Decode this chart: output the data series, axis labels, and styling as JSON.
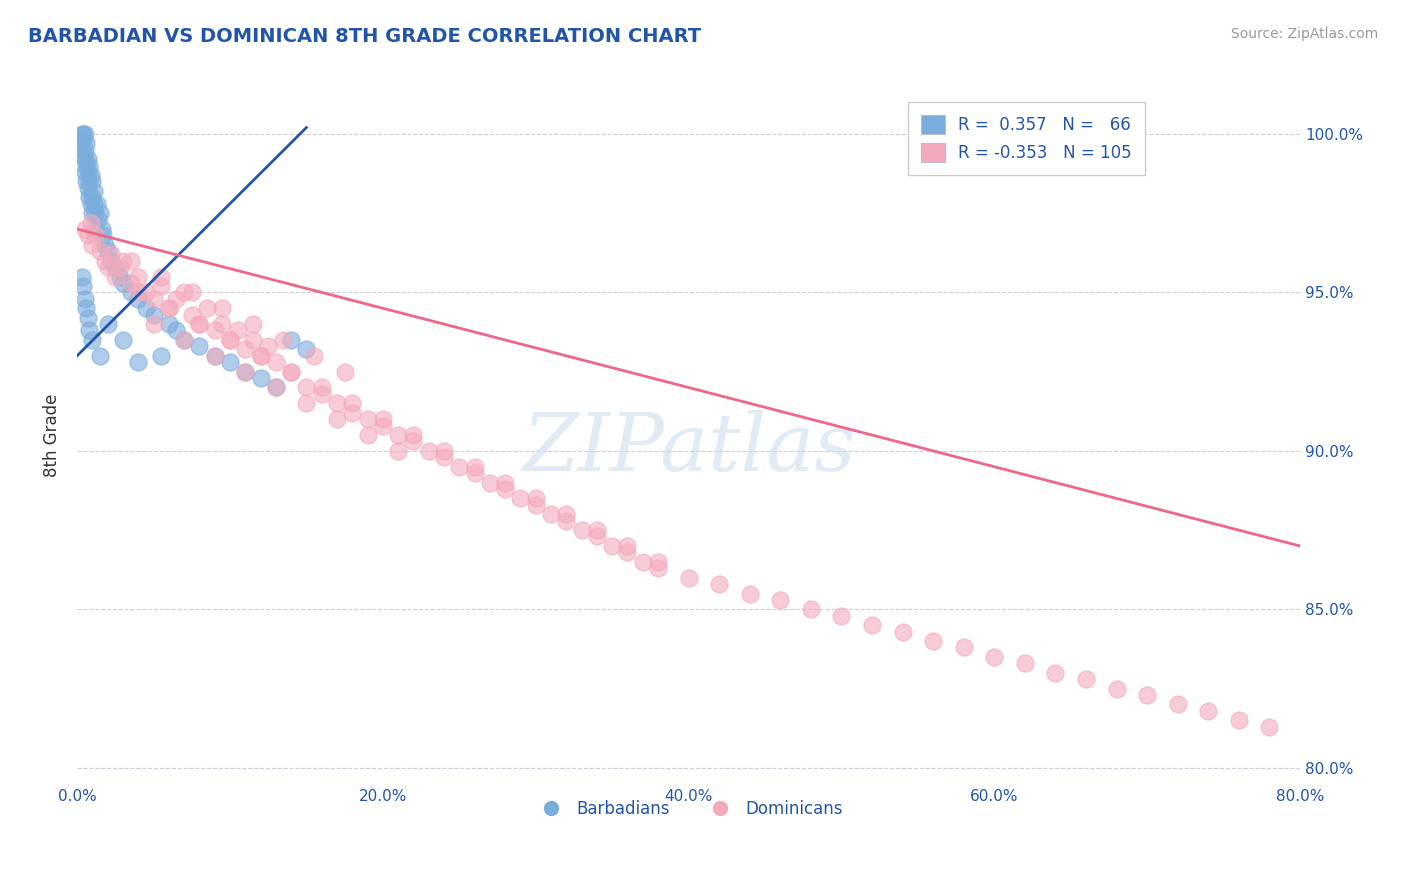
{
  "title": "BARBADIAN VS DOMINICAN 8TH GRADE CORRELATION CHART",
  "source_text": "Source: ZipAtlas.com",
  "ylabel": "8th Grade",
  "xlim": [
    0.0,
    80.0
  ],
  "ylim": [
    79.5,
    101.5
  ],
  "blue_color": "#7AADDC",
  "pink_color": "#F4AABB",
  "blue_line_color": "#2255AA",
  "pink_line_color": "#EE6688",
  "title_color": "#2255AA",
  "source_color": "#999999",
  "axis_label_color": "#2255AA",
  "tick_color": "#2255AA",
  "background_color": "#FFFFFF",
  "grid_color": "#CCCCDD",
  "watermark_text": "ZIPatlas",
  "blue_scatter_x": [
    0.2,
    0.3,
    0.3,
    0.4,
    0.4,
    0.4,
    0.5,
    0.5,
    0.5,
    0.5,
    0.6,
    0.6,
    0.6,
    0.7,
    0.7,
    0.7,
    0.8,
    0.8,
    0.8,
    0.9,
    0.9,
    1.0,
    1.0,
    1.0,
    1.1,
    1.1,
    1.2,
    1.2,
    1.3,
    1.4,
    1.5,
    1.6,
    1.7,
    1.8,
    2.0,
    2.2,
    2.5,
    2.8,
    3.0,
    3.5,
    4.0,
    4.5,
    5.0,
    6.0,
    6.5,
    7.0,
    8.0,
    9.0,
    10.0,
    11.0,
    12.0,
    13.0,
    14.0,
    15.0,
    0.3,
    0.4,
    0.5,
    0.6,
    0.7,
    0.8,
    1.0,
    1.5,
    2.0,
    3.0,
    4.0,
    5.5
  ],
  "blue_scatter_y": [
    99.8,
    100.0,
    99.5,
    100.0,
    99.8,
    99.3,
    100.0,
    99.5,
    99.2,
    98.8,
    99.7,
    99.0,
    98.5,
    99.2,
    98.8,
    98.3,
    99.0,
    98.5,
    98.0,
    98.7,
    97.8,
    98.5,
    98.0,
    97.5,
    98.2,
    97.8,
    97.5,
    97.0,
    97.8,
    97.3,
    97.5,
    97.0,
    96.8,
    96.5,
    96.3,
    96.0,
    95.8,
    95.5,
    95.3,
    95.0,
    94.8,
    94.5,
    94.3,
    94.0,
    93.8,
    93.5,
    93.3,
    93.0,
    92.8,
    92.5,
    92.3,
    92.0,
    93.5,
    93.2,
    95.5,
    95.2,
    94.8,
    94.5,
    94.2,
    93.8,
    93.5,
    93.0,
    94.0,
    93.5,
    92.8,
    93.0
  ],
  "pink_scatter_x": [
    0.5,
    0.7,
    0.9,
    1.0,
    1.2,
    1.5,
    1.8,
    2.0,
    2.2,
    2.5,
    2.8,
    3.0,
    3.5,
    4.0,
    4.5,
    5.0,
    5.5,
    6.0,
    6.5,
    7.0,
    7.5,
    8.0,
    8.5,
    9.0,
    9.5,
    10.0,
    10.5,
    11.0,
    11.5,
    12.0,
    12.5,
    13.0,
    14.0,
    15.0,
    16.0,
    17.0,
    18.0,
    19.0,
    20.0,
    21.0,
    22.0,
    23.0,
    24.0,
    25.0,
    26.0,
    27.0,
    28.0,
    29.0,
    30.0,
    31.0,
    32.0,
    33.0,
    34.0,
    35.0,
    36.0,
    37.0,
    38.0,
    40.0,
    42.0,
    44.0,
    46.0,
    48.0,
    50.0,
    52.0,
    54.0,
    56.0,
    58.0,
    60.0,
    62.0,
    64.0,
    66.0,
    68.0,
    70.0,
    72.0,
    74.0,
    76.0,
    78.0,
    5.0,
    7.0,
    9.0,
    11.0,
    13.0,
    15.0,
    17.0,
    19.0,
    21.0,
    4.0,
    6.0,
    8.0,
    10.0,
    12.0,
    14.0,
    16.0,
    18.0,
    20.0,
    22.0,
    24.0,
    26.0,
    28.0,
    30.0,
    32.0,
    34.0,
    36.0,
    38.0,
    3.5,
    5.5,
    7.5,
    9.5,
    11.5,
    13.5,
    15.5,
    17.5
  ],
  "pink_scatter_y": [
    97.0,
    96.8,
    97.2,
    96.5,
    96.8,
    96.3,
    96.0,
    95.8,
    96.2,
    95.5,
    95.8,
    96.0,
    95.3,
    95.5,
    95.0,
    94.8,
    95.2,
    94.5,
    94.8,
    95.0,
    94.3,
    94.0,
    94.5,
    93.8,
    94.0,
    93.5,
    93.8,
    93.2,
    93.5,
    93.0,
    93.3,
    92.8,
    92.5,
    92.0,
    91.8,
    91.5,
    91.2,
    91.0,
    90.8,
    90.5,
    90.3,
    90.0,
    89.8,
    89.5,
    89.3,
    89.0,
    88.8,
    88.5,
    88.3,
    88.0,
    87.8,
    87.5,
    87.3,
    87.0,
    86.8,
    86.5,
    86.3,
    86.0,
    85.8,
    85.5,
    85.3,
    85.0,
    84.8,
    84.5,
    84.3,
    84.0,
    83.8,
    83.5,
    83.3,
    83.0,
    82.8,
    82.5,
    82.3,
    82.0,
    81.8,
    81.5,
    81.3,
    94.0,
    93.5,
    93.0,
    92.5,
    92.0,
    91.5,
    91.0,
    90.5,
    90.0,
    95.0,
    94.5,
    94.0,
    93.5,
    93.0,
    92.5,
    92.0,
    91.5,
    91.0,
    90.5,
    90.0,
    89.5,
    89.0,
    88.5,
    88.0,
    87.5,
    87.0,
    86.5,
    96.0,
    95.5,
    95.0,
    94.5,
    94.0,
    93.5,
    93.0,
    92.5
  ],
  "legend_items": [
    {
      "label": "Barbadians",
      "color": "#7AADDC"
    },
    {
      "label": "Dominicans",
      "color": "#F4AABB"
    }
  ]
}
